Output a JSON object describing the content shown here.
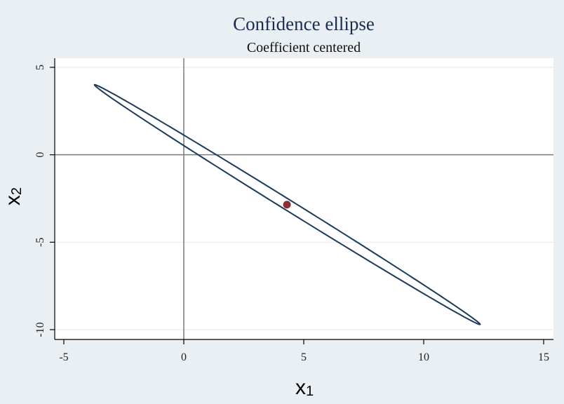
{
  "chart_data": {
    "type": "scatter",
    "title": "Confidence ellipse",
    "subtitle": "Coefficient centered",
    "xlabel": {
      "main": "x",
      "sub": "1"
    },
    "ylabel": {
      "main": "x",
      "sub": "2"
    },
    "xlim": [
      -5,
      15
    ],
    "ylim": [
      -10,
      5
    ],
    "xticks": [
      -5,
      0,
      5,
      10,
      15
    ],
    "yticks": [
      5,
      0,
      -5,
      -10
    ],
    "grid": true,
    "reference_lines": {
      "x": 0,
      "y": 0
    },
    "point": {
      "x": 4.3,
      "y": -2.85
    },
    "ellipse": {
      "center": [
        4.3,
        -2.85
      ],
      "endpoints": [
        [
          -3.72,
          4.0
        ],
        [
          12.35,
          -9.7
        ]
      ],
      "half_width": 0.22
    },
    "colors": {
      "background": "#e9eff3",
      "plot_background": "#ffffff",
      "ellipse": "#1a3a5c",
      "point": "#8b2e35",
      "title": "#1a2c52",
      "grid": "#e6ecef",
      "reference": "#7a7a7a"
    }
  }
}
